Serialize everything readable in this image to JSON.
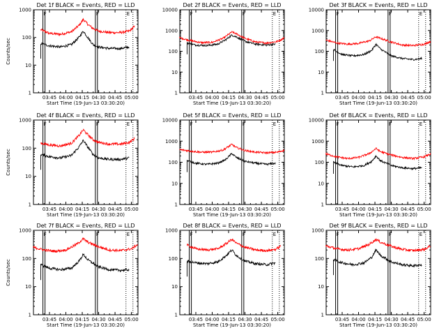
{
  "figure": {
    "background": "#ffffff",
    "ink_color": "#000000"
  },
  "chart_data": [
    {
      "type": "line",
      "title": "Det 1f BLACK = Events, RED = LLD",
      "xlabel": "Start Time (19-Jun-13 03:30:20)",
      "ylabel": "Counts/sec",
      "y_scale": "log",
      "ylim": [
        1,
        1000
      ],
      "y_ticks": [
        "1",
        "10",
        "100",
        "1000"
      ],
      "x_ticks": [
        "03:45",
        "04:00",
        "04:15",
        "04:30",
        "04:45",
        "05:00"
      ],
      "xlim": [
        "03:30:20",
        "05:06"
      ],
      "markers": [
        {
          "label": "F",
          "time": "03:39"
        },
        {
          "label": "F",
          "time": "04:27"
        },
        {
          "label": "E",
          "time": "04:55"
        }
      ],
      "series": [
        {
          "name": "RED = LLD",
          "color": "#ff0000",
          "x": [
            "03:37",
            "03:45",
            "03:55",
            "04:05",
            "04:12",
            "04:16",
            "04:20",
            "04:25",
            "04:30",
            "04:40",
            "04:50",
            "04:58",
            "05:03"
          ],
          "values": [
            190,
            140,
            130,
            160,
            270,
            450,
            300,
            210,
            170,
            150,
            150,
            170,
            250
          ]
        },
        {
          "name": "BLACK = Events",
          "color": "#000000",
          "x": [
            "03:37",
            "03:45",
            "03:55",
            "04:05",
            "04:12",
            "04:16",
            "04:20",
            "04:25",
            "04:30",
            "04:40",
            "04:50",
            "04:58"
          ],
          "values": [
            60,
            50,
            45,
            55,
            100,
            170,
            100,
            55,
            45,
            40,
            40,
            45
          ]
        }
      ]
    },
    {
      "type": "line",
      "title": "Det 2f BLACK = Events, RED = LLD",
      "xlabel": "Start Time (19-Jun-13 03:30:20)",
      "ylabel": "",
      "y_scale": "log",
      "ylim": [
        1,
        10000
      ],
      "y_ticks": [
        "1",
        "10",
        "100",
        "1000",
        "10000"
      ],
      "x_ticks": [
        "03:45",
        "04:00",
        "04:15",
        "04:30",
        "04:45",
        "05:00"
      ],
      "xlim": [
        "03:30:20",
        "05:06"
      ],
      "markers": [
        {
          "label": "F",
          "time": "03:39"
        },
        {
          "label": "F",
          "time": "04:27"
        },
        {
          "label": "E",
          "time": "04:55"
        }
      ],
      "series": [
        {
          "name": "RED = LLD",
          "color": "#ff0000",
          "x": [
            "03:30",
            "03:40",
            "03:50",
            "04:00",
            "04:10",
            "04:18",
            "04:22",
            "04:30",
            "04:40",
            "04:50",
            "05:00",
            "05:06"
          ],
          "values": [
            450,
            330,
            260,
            270,
            420,
            850,
            700,
            420,
            280,
            250,
            300,
            450
          ]
        },
        {
          "name": "BLACK = Events",
          "color": "#000000",
          "x": [
            "03:37",
            "03:45",
            "03:55",
            "04:05",
            "04:12",
            "04:18",
            "04:22",
            "04:30",
            "04:40",
            "04:50",
            "04:58"
          ],
          "values": [
            250,
            200,
            190,
            220,
            350,
            600,
            500,
            300,
            220,
            200,
            220
          ]
        }
      ]
    },
    {
      "type": "line",
      "title": "Det 3f BLACK = Events, RED = LLD",
      "xlabel": "Start Time (19-Jun-13 03:30:20)",
      "ylabel": "",
      "y_scale": "log",
      "ylim": [
        1,
        10000
      ],
      "y_ticks": [
        "1",
        "10",
        "100",
        "1000",
        "10000"
      ],
      "x_ticks": [
        "03:45",
        "04:00",
        "04:15",
        "04:30",
        "04:45",
        "05:00"
      ],
      "xlim": [
        "03:30:20",
        "05:06"
      ],
      "markers": [
        {
          "label": "F",
          "time": "03:39"
        },
        {
          "label": "F",
          "time": "04:27"
        },
        {
          "label": "E",
          "time": "04:55"
        }
      ],
      "series": [
        {
          "name": "RED = LLD",
          "color": "#ff0000",
          "x": [
            "03:30",
            "03:40",
            "03:50",
            "04:00",
            "04:10",
            "04:16",
            "04:20",
            "04:30",
            "04:40",
            "04:50",
            "05:00",
            "05:06"
          ],
          "values": [
            350,
            250,
            220,
            240,
            320,
            500,
            420,
            280,
            200,
            190,
            220,
            300
          ]
        },
        {
          "name": "BLACK = Events",
          "color": "#000000",
          "x": [
            "03:37",
            "03:45",
            "03:55",
            "04:05",
            "04:12",
            "04:16",
            "04:20",
            "04:30",
            "04:40",
            "04:50",
            "04:58"
          ],
          "values": [
            120,
            70,
            60,
            70,
            110,
            220,
            130,
            60,
            45,
            40,
            45
          ]
        }
      ]
    },
    {
      "type": "line",
      "title": "Det 4f BLACK = Events, RED = LLD",
      "xlabel": "Start Time (19-Jun-13 03:30:20)",
      "ylabel": "Counts/sec",
      "y_scale": "log",
      "ylim": [
        1,
        1000
      ],
      "y_ticks": [
        "1",
        "10",
        "100",
        "1000"
      ],
      "x_ticks": [
        "03:45",
        "04:00",
        "04:15",
        "04:30",
        "04:45",
        "05:00"
      ],
      "xlim": [
        "03:30:20",
        "05:06"
      ],
      "markers": [
        {
          "label": "F",
          "time": "03:39"
        },
        {
          "label": "F",
          "time": "04:27"
        },
        {
          "label": "E",
          "time": "04:55"
        }
      ],
      "series": [
        {
          "name": "RED = LLD",
          "color": "#ff0000",
          "x": [
            "03:37",
            "03:45",
            "03:55",
            "04:05",
            "04:12",
            "04:16",
            "04:20",
            "04:25",
            "04:30",
            "04:40",
            "04:50",
            "04:58",
            "05:03"
          ],
          "values": [
            150,
            130,
            120,
            150,
            280,
            450,
            300,
            200,
            160,
            140,
            140,
            160,
            220
          ]
        },
        {
          "name": "BLACK = Events",
          "color": "#000000",
          "x": [
            "03:37",
            "03:45",
            "03:55",
            "04:05",
            "04:12",
            "04:16",
            "04:20",
            "04:25",
            "04:30",
            "04:40",
            "04:50",
            "04:58"
          ],
          "values": [
            60,
            50,
            45,
            55,
            110,
            190,
            110,
            60,
            45,
            40,
            40,
            45
          ]
        }
      ]
    },
    {
      "type": "line",
      "title": "Det 5f BLACK = Events, RED = LLD",
      "xlabel": "Start Time (19-Jun-13 03:30:20)",
      "ylabel": "",
      "y_scale": "log",
      "ylim": [
        1,
        10000
      ],
      "y_ticks": [
        "1",
        "10",
        "100",
        "1000",
        "10000"
      ],
      "x_ticks": [
        "03:45",
        "04:00",
        "04:15",
        "04:30",
        "04:45",
        "05:00"
      ],
      "xlim": [
        "03:30:20",
        "05:06"
      ],
      "markers": [
        {
          "label": "F",
          "time": "03:39"
        },
        {
          "label": "F",
          "time": "04:27"
        },
        {
          "label": "E",
          "time": "04:55"
        }
      ],
      "series": [
        {
          "name": "RED = LLD",
          "color": "#ff0000",
          "x": [
            "03:30",
            "03:40",
            "03:50",
            "04:00",
            "04:10",
            "04:18",
            "04:22",
            "04:30",
            "04:40",
            "04:50",
            "05:00",
            "05:06"
          ],
          "values": [
            400,
            340,
            300,
            300,
            380,
            700,
            500,
            360,
            300,
            280,
            300,
            380
          ]
        },
        {
          "name": "BLACK = Events",
          "color": "#000000",
          "x": [
            "03:37",
            "03:45",
            "03:55",
            "04:05",
            "04:12",
            "04:18",
            "04:22",
            "04:30",
            "04:40",
            "04:50",
            "04:58"
          ],
          "values": [
            120,
            90,
            80,
            90,
            130,
            260,
            170,
            110,
            90,
            80,
            90
          ]
        }
      ]
    },
    {
      "type": "line",
      "title": "Det 6f BLACK = Events, RED = LLD",
      "xlabel": "Start Time (19-Jun-13 03:30:20)",
      "ylabel": "",
      "y_scale": "log",
      "ylim": [
        1,
        10000
      ],
      "y_ticks": [
        "1",
        "10",
        "100",
        "1000",
        "10000"
      ],
      "x_ticks": [
        "03:45",
        "04:00",
        "04:15",
        "04:30",
        "04:45",
        "05:00"
      ],
      "xlim": [
        "03:30:20",
        "05:06"
      ],
      "markers": [
        {
          "label": "F",
          "time": "03:39"
        },
        {
          "label": "F",
          "time": "04:27"
        },
        {
          "label": "E",
          "time": "04:55"
        }
      ],
      "series": [
        {
          "name": "RED = LLD",
          "color": "#ff0000",
          "x": [
            "03:30",
            "03:40",
            "03:50",
            "04:00",
            "04:10",
            "04:16",
            "04:20",
            "04:30",
            "04:40",
            "04:50",
            "05:00",
            "05:06"
          ],
          "values": [
            250,
            180,
            150,
            170,
            260,
            450,
            320,
            220,
            170,
            150,
            180,
            250
          ]
        },
        {
          "name": "BLACK = Events",
          "color": "#000000",
          "x": [
            "03:37",
            "03:45",
            "03:55",
            "04:05",
            "04:12",
            "04:16",
            "04:20",
            "04:30",
            "04:40",
            "04:50",
            "04:58"
          ],
          "values": [
            100,
            70,
            60,
            70,
            110,
            200,
            120,
            70,
            55,
            50,
            55
          ]
        }
      ]
    },
    {
      "type": "line",
      "title": "Det 7f BLACK = Events, RED = LLD",
      "xlabel": "Start Time (19-Jun-13 03:30:20)",
      "ylabel": "Counts/sec",
      "y_scale": "log",
      "ylim": [
        1,
        1000
      ],
      "y_ticks": [
        "1",
        "10",
        "100",
        "1000"
      ],
      "x_ticks": [
        "03:45",
        "04:00",
        "04:15",
        "04:30",
        "04:45",
        "05:00"
      ],
      "xlim": [
        "03:30:20",
        "05:06"
      ],
      "markers": [
        {
          "label": "F",
          "time": "03:39"
        },
        {
          "label": "F",
          "time": "04:27"
        },
        {
          "label": "E",
          "time": "04:55"
        }
      ],
      "series": [
        {
          "name": "RED = LLD",
          "color": "#ff0000",
          "x": [
            "03:30",
            "03:40",
            "03:50",
            "04:00",
            "04:10",
            "04:16",
            "04:20",
            "04:30",
            "04:40",
            "04:50",
            "05:00",
            "05:06"
          ],
          "values": [
            250,
            200,
            180,
            200,
            320,
            500,
            380,
            260,
            200,
            190,
            220,
            320
          ]
        },
        {
          "name": "BLACK = Events",
          "color": "#000000",
          "x": [
            "03:37",
            "03:45",
            "03:55",
            "04:05",
            "04:12",
            "04:16",
            "04:20",
            "04:30",
            "04:40",
            "04:50",
            "04:58"
          ],
          "values": [
            60,
            45,
            40,
            45,
            80,
            140,
            90,
            50,
            40,
            38,
            40
          ]
        }
      ]
    },
    {
      "type": "line",
      "title": "Det 8f BLACK = Events, RED = LLD",
      "xlabel": "Start Time (19-Jun-13 03:30:20)",
      "ylabel": "",
      "y_scale": "log",
      "ylim": [
        1,
        1000
      ],
      "y_ticks": [
        "1",
        "10",
        "100",
        "1000"
      ],
      "x_ticks": [
        "03:45",
        "04:00",
        "04:15",
        "04:30",
        "04:45",
        "05:00"
      ],
      "xlim": [
        "03:30:20",
        "05:06"
      ],
      "markers": [
        {
          "label": "F",
          "time": "03:39"
        },
        {
          "label": "F",
          "time": "04:27"
        },
        {
          "label": "E",
          "time": "04:55"
        }
      ],
      "series": [
        {
          "name": "RED = LLD",
          "color": "#ff0000",
          "x": [
            "03:37",
            "03:45",
            "03:55",
            "04:05",
            "04:12",
            "04:18",
            "04:22",
            "04:30",
            "04:40",
            "04:50",
            "04:58",
            "05:03"
          ],
          "values": [
            300,
            220,
            200,
            220,
            320,
            480,
            350,
            250,
            200,
            190,
            210,
            280
          ]
        },
        {
          "name": "BLACK = Events",
          "color": "#000000",
          "x": [
            "03:37",
            "03:45",
            "03:55",
            "04:05",
            "04:12",
            "04:18",
            "04:22",
            "04:30",
            "04:40",
            "04:50",
            "04:58"
          ],
          "values": [
            80,
            70,
            65,
            75,
            120,
            200,
            130,
            80,
            65,
            60,
            70
          ]
        }
      ]
    },
    {
      "type": "line",
      "title": "Det 9f BLACK = Events, RED = LLD",
      "xlabel": "Start Time (19-Jun-13 03:30:20)",
      "ylabel": "",
      "y_scale": "log",
      "ylim": [
        1,
        1000
      ],
      "y_ticks": [
        "1",
        "10",
        "100",
        "1000"
      ],
      "x_ticks": [
        "03:45",
        "04:00",
        "04:15",
        "04:30",
        "04:45",
        "05:00"
      ],
      "xlim": [
        "03:30:20",
        "05:06"
      ],
      "markers": [
        {
          "label": "F",
          "time": "03:39"
        },
        {
          "label": "F",
          "time": "04:27"
        },
        {
          "label": "E",
          "time": "04:55"
        }
      ],
      "series": [
        {
          "name": "RED = LLD",
          "color": "#ff0000",
          "x": [
            "03:30",
            "03:40",
            "03:50",
            "04:00",
            "04:10",
            "04:16",
            "04:20",
            "04:30",
            "04:40",
            "04:50",
            "05:00",
            "05:06"
          ],
          "values": [
            280,
            220,
            200,
            220,
            320,
            480,
            380,
            270,
            210,
            190,
            210,
            280
          ]
        },
        {
          "name": "BLACK = Events",
          "color": "#000000",
          "x": [
            "03:37",
            "03:45",
            "03:55",
            "04:05",
            "04:12",
            "04:16",
            "04:20",
            "04:30",
            "04:40",
            "04:50",
            "04:58"
          ],
          "values": [
            90,
            70,
            60,
            70,
            110,
            200,
            130,
            75,
            60,
            55,
            60
          ]
        }
      ]
    }
  ]
}
